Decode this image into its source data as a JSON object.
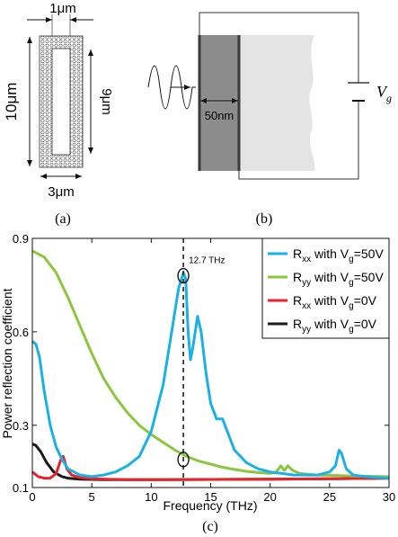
{
  "panel_a": {
    "width_top": "1μm",
    "height_left": "10μm",
    "height_right": "9μm",
    "width_bottom": "3μm",
    "caption": "(a)"
  },
  "panel_b": {
    "thickness": "50nm",
    "voltage_label": "V",
    "voltage_sub": "g",
    "caption": "(b)"
  },
  "figure_caption_c": "(c)",
  "chart_data": {
    "type": "line",
    "xlabel": "Frequency (THz)",
    "ylabel": "Power reflection coefficient",
    "xlim": [
      0,
      30
    ],
    "ylim": [
      0.1,
      0.9
    ],
    "xticks": [
      "0",
      "5",
      "10",
      "15",
      "20",
      "25",
      "30"
    ],
    "yticks": [
      "0.1",
      "0.3",
      "0.6",
      "0.9"
    ],
    "vline": {
      "x": 12.7,
      "label": "12.7 THz"
    },
    "markers": [
      {
        "x": 12.7,
        "y": 0.78
      },
      {
        "x": 12.7,
        "y": 0.19
      }
    ],
    "legend_position": "top-right",
    "series": [
      {
        "name": "Rxx with Vg=50V",
        "legend": {
          "a": "R",
          "sub1": "xx",
          "b": " with V",
          "sub2": "g",
          "c": "=50V"
        },
        "color": "#1ab0e8",
        "points": [
          [
            0,
            0.57
          ],
          [
            0.3,
            0.56
          ],
          [
            0.6,
            0.52
          ],
          [
            1,
            0.41
          ],
          [
            1.5,
            0.3
          ],
          [
            2,
            0.23
          ],
          [
            2.5,
            0.19
          ],
          [
            3,
            0.16
          ],
          [
            4,
            0.14
          ],
          [
            5,
            0.135
          ],
          [
            6,
            0.14
          ],
          [
            7,
            0.15
          ],
          [
            8,
            0.17
          ],
          [
            9,
            0.2
          ],
          [
            10,
            0.28
          ],
          [
            11,
            0.43
          ],
          [
            11.8,
            0.62
          ],
          [
            12.3,
            0.74
          ],
          [
            12.7,
            0.79
          ],
          [
            12.9,
            0.77
          ],
          [
            13.1,
            0.6
          ],
          [
            13.3,
            0.51
          ],
          [
            13.5,
            0.55
          ],
          [
            13.9,
            0.65
          ],
          [
            14.2,
            0.6
          ],
          [
            14.6,
            0.47
          ],
          [
            15,
            0.37
          ],
          [
            15.5,
            0.32
          ],
          [
            16,
            0.32
          ],
          [
            16.4,
            0.28
          ],
          [
            17,
            0.22
          ],
          [
            18,
            0.18
          ],
          [
            19,
            0.16
          ],
          [
            20,
            0.15
          ],
          [
            21,
            0.145
          ],
          [
            22,
            0.14
          ],
          [
            23,
            0.14
          ],
          [
            24,
            0.14
          ],
          [
            25,
            0.15
          ],
          [
            25.5,
            0.17
          ],
          [
            25.8,
            0.22
          ],
          [
            26,
            0.21
          ],
          [
            26.4,
            0.16
          ],
          [
            27,
            0.14
          ],
          [
            28,
            0.135
          ],
          [
            29,
            0.132
          ],
          [
            30,
            0.13
          ]
        ]
      },
      {
        "name": "Ryy with Vg=50V",
        "legend": {
          "a": "R",
          "sub1": "yy",
          "b": " with V",
          "sub2": "g",
          "c": "=50V"
        },
        "color": "#8cc63f",
        "points": [
          [
            0,
            0.86
          ],
          [
            1,
            0.84
          ],
          [
            2,
            0.79
          ],
          [
            3,
            0.71
          ],
          [
            4,
            0.62
          ],
          [
            5,
            0.53
          ],
          [
            6,
            0.45
          ],
          [
            7,
            0.39
          ],
          [
            8,
            0.34
          ],
          [
            9,
            0.3
          ],
          [
            10,
            0.27
          ],
          [
            11,
            0.245
          ],
          [
            12,
            0.22
          ],
          [
            13,
            0.2
          ],
          [
            14,
            0.185
          ],
          [
            15,
            0.175
          ],
          [
            16,
            0.165
          ],
          [
            17,
            0.158
          ],
          [
            18,
            0.152
          ],
          [
            19,
            0.148
          ],
          [
            20,
            0.145
          ],
          [
            20.5,
            0.15
          ],
          [
            20.9,
            0.17
          ],
          [
            21.2,
            0.155
          ],
          [
            21.5,
            0.17
          ],
          [
            21.9,
            0.155
          ],
          [
            22.5,
            0.145
          ],
          [
            24,
            0.14
          ],
          [
            26,
            0.138
          ],
          [
            28,
            0.136
          ],
          [
            30,
            0.135
          ]
        ]
      },
      {
        "name": "Rxx with Vg=0V",
        "legend": {
          "a": "R",
          "sub1": "xx",
          "b": " with V",
          "sub2": "g",
          "c": "=0V"
        },
        "color": "#e8232a",
        "points": [
          [
            0,
            0.15
          ],
          [
            0.5,
            0.135
          ],
          [
            1,
            0.13
          ],
          [
            1.5,
            0.13
          ],
          [
            2,
            0.145
          ],
          [
            2.4,
            0.19
          ],
          [
            2.6,
            0.2
          ],
          [
            2.9,
            0.16
          ],
          [
            3.3,
            0.14
          ],
          [
            4,
            0.132
          ],
          [
            5,
            0.128
          ],
          [
            8,
            0.125
          ],
          [
            12,
            0.125
          ],
          [
            16,
            0.126
          ],
          [
            20,
            0.127
          ],
          [
            25,
            0.128
          ],
          [
            30,
            0.13
          ]
        ]
      },
      {
        "name": "Ryy with Vg=0V",
        "legend": {
          "a": "R",
          "sub1": "yy",
          "b": " with V",
          "sub2": "g",
          "c": "=0V"
        },
        "color": "#1a1a1a",
        "points": [
          [
            0,
            0.24
          ],
          [
            0.3,
            0.235
          ],
          [
            0.7,
            0.215
          ],
          [
            1.2,
            0.18
          ],
          [
            1.8,
            0.15
          ],
          [
            2.5,
            0.135
          ],
          [
            3,
            0.13
          ],
          [
            4,
            0.127
          ],
          [
            6,
            0.125
          ],
          [
            10,
            0.125
          ],
          [
            15,
            0.126
          ],
          [
            20,
            0.127
          ],
          [
            25,
            0.128
          ],
          [
            30,
            0.13
          ]
        ]
      }
    ]
  }
}
